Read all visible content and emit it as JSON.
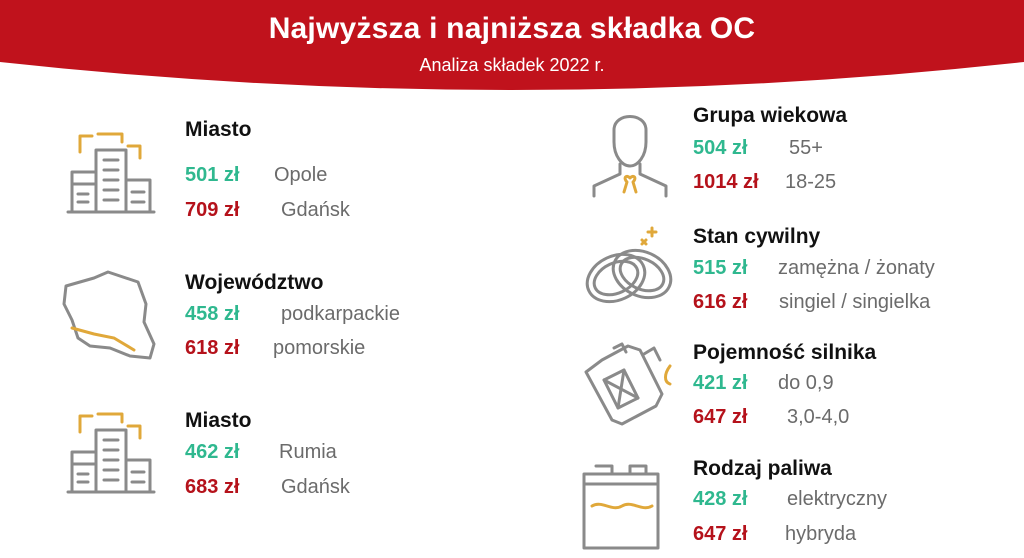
{
  "header": {
    "title": "Najwyższa i najniższa składka OC",
    "subtitle": "Analiza składek 2022 r.",
    "color": "#c0121c"
  },
  "colors": {
    "low": "#2fb88f",
    "high": "#b5121b",
    "icon_gray": "#8a8a8a",
    "icon_accent": "#e0a83a"
  },
  "left": [
    {
      "icon": "buildings-icon",
      "title": "Miasto",
      "low": {
        "price": "501 zł",
        "label": "Opole"
      },
      "high": {
        "price": "709 zł",
        "label": "Gdańsk"
      }
    },
    {
      "icon": "poland-map-icon",
      "title": "Województwo",
      "low": {
        "price": "458 zł",
        "label": "podkarpackie"
      },
      "high": {
        "price": "618 zł",
        "label": "pomorskie"
      }
    },
    {
      "icon": "buildings-icon",
      "title": "Miasto",
      "low": {
        "price": "462 zł",
        "label": "Rumia"
      },
      "high": {
        "price": "683 zł",
        "label": "Gdańsk"
      }
    }
  ],
  "right": [
    {
      "icon": "person-icon",
      "title": "Grupa wiekowa",
      "low": {
        "price": "504 zł",
        "label": "55+"
      },
      "high": {
        "price": "1014 zł",
        "label": "18-25"
      }
    },
    {
      "icon": "wedding-rings-icon",
      "title": "Stan cywilny",
      "low": {
        "price": "515 zł",
        "label": "zamężna / żonaty"
      },
      "high": {
        "price": "616 zł",
        "label": "singiel / singielka"
      }
    },
    {
      "icon": "fuel-canister-icon",
      "title": "Pojemność silnika",
      "low": {
        "price": "421 zł",
        "label": "do 0,9"
      },
      "high": {
        "price": "647 zł",
        "label": "3,0-4,0"
      }
    },
    {
      "icon": "battery-icon",
      "title": "Rodzaj paliwa",
      "low": {
        "price": "428 zł",
        "label": "elektryczny"
      },
      "high": {
        "price": "647 zł",
        "label": "hybryda"
      }
    }
  ]
}
